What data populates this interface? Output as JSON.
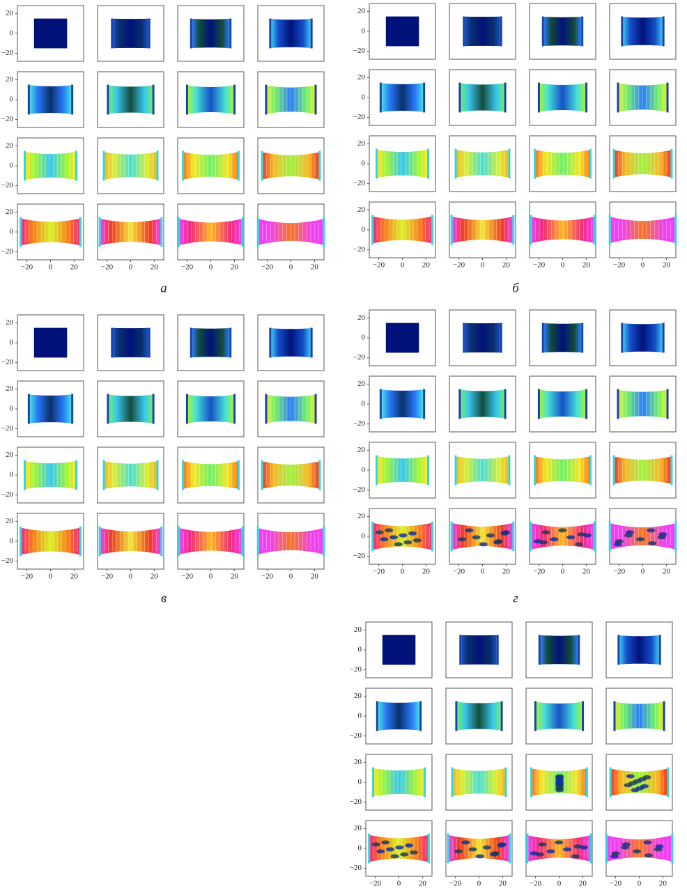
{
  "panels": [
    {
      "label": "а",
      "xlim": [
        -28,
        28
      ],
      "ylim": [
        -28,
        28
      ],
      "xticks": [
        {
          "value": -20,
          "label": "−20"
        },
        0,
        20
      ],
      "yticks": [
        20,
        0,
        {
          "value": -20,
          "label": "−20"
        }
      ]
    },
    {
      "label": "б",
      "xlim": [
        -28,
        28
      ],
      "ylim": [
        -28,
        28
      ],
      "xticks": [
        {
          "value": -20,
          "label": "−20"
        },
        0,
        20
      ],
      "yticks": [
        20,
        0,
        {
          "value": -20,
          "label": "−20"
        }
      ]
    },
    {
      "label": "в",
      "xlim": [
        -28,
        28
      ],
      "ylim": [
        -28,
        28
      ],
      "xticks": [
        {
          "value": -20,
          "label": "−20"
        },
        0,
        20
      ],
      "yticks": [
        20,
        0,
        {
          "value": -20,
          "label": "−20"
        }
      ]
    },
    {
      "label": "г",
      "xlim": [
        -28,
        28
      ],
      "ylim": [
        -28,
        28
      ],
      "xticks": [
        {
          "value": -20,
          "label": "−20"
        },
        0,
        20
      ],
      "yticks": [
        20,
        0,
        {
          "value": -20,
          "label": "−20"
        }
      ]
    },
    {
      "xlim": [
        -28,
        28
      ],
      "ylim": [
        -28,
        28
      ],
      "xticks": [
        {
          "value": -20,
          "label": "−20"
        },
        0,
        20
      ],
      "yticks": [
        20,
        0,
        {
          "value": -20,
          "label": "−20"
        }
      ]
    }
  ]
}
